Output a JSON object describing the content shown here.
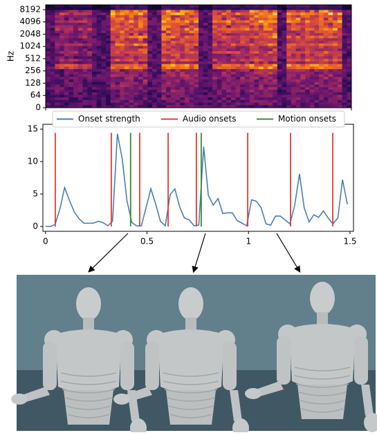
{
  "chart_data": [
    {
      "type": "spectrogram",
      "ylabel": "Hz",
      "yscale": "symlog",
      "linthresh": 64,
      "ylim": [
        0,
        10760
      ],
      "yticks": [
        0,
        64,
        128,
        256,
        512,
        1024,
        2048,
        4096,
        8192
      ]
    },
    {
      "type": "line",
      "x": [
        0,
        0.024,
        0.047,
        0.071,
        0.094,
        0.118,
        0.142,
        0.165,
        0.189,
        0.212,
        0.236,
        0.26,
        0.283,
        0.307,
        0.33,
        0.354,
        0.378,
        0.401,
        0.425,
        0.448,
        0.472,
        0.496,
        0.519,
        0.543,
        0.566,
        0.59,
        0.614,
        0.637,
        0.661,
        0.684,
        0.708,
        0.732,
        0.755,
        0.779,
        0.802,
        0.826,
        0.85,
        0.873,
        0.897,
        0.92,
        0.944,
        0.968,
        0.991,
        1.015,
        1.038,
        1.062,
        1.086,
        1.109,
        1.133,
        1.156,
        1.18,
        1.204,
        1.227,
        1.251,
        1.274,
        1.298,
        1.322,
        1.345,
        1.369,
        1.392,
        1.416,
        1.44,
        1.463,
        1.487
      ],
      "series": [
        {
          "name": "Onset strength",
          "color": "#4a7eb3",
          "values": [
            0,
            0,
            0.3,
            2.7,
            6.0,
            4.0,
            2.2,
            1.2,
            0.5,
            0.5,
            0.5,
            0.8,
            0.6,
            0.1,
            0.8,
            14.3,
            10.4,
            4.0,
            0.6,
            0.1,
            0.1,
            3.0,
            5.8,
            3.4,
            0.8,
            0.1,
            4.9,
            5.8,
            3.0,
            1.3,
            1.0,
            0.1,
            0.2,
            12.3,
            4.8,
            3.3,
            4.3,
            2.0,
            2.1,
            2.1,
            0.9,
            0.5,
            0.1,
            4.1,
            3.9,
            2.9,
            0.4,
            0.2,
            1.6,
            1.6,
            1.0,
            0.4,
            3.2,
            8.1,
            2.9,
            0.7,
            1.8,
            1.4,
            2.4,
            1.3,
            0.4,
            1.3,
            7.2,
            3.4
          ]
        }
      ],
      "vlines": [
        {
          "name": "Audio onsets",
          "color": "#e23b2e",
          "x": [
            0.048,
            0.324,
            0.464,
            0.604,
            0.743,
            0.996,
            1.207,
            1.415
          ]
        },
        {
          "name": "Motion onsets",
          "color": "#3b8c2b",
          "x": [
            0.419,
            0.767
          ]
        }
      ],
      "xlim": [
        -0.013,
        1.517
      ],
      "ylim": [
        -0.75,
        15.75
      ],
      "xticks": [
        0,
        0.5,
        1,
        1.5
      ],
      "yticks": [
        0,
        5,
        10,
        15
      ],
      "legend": "top"
    }
  ]
}
